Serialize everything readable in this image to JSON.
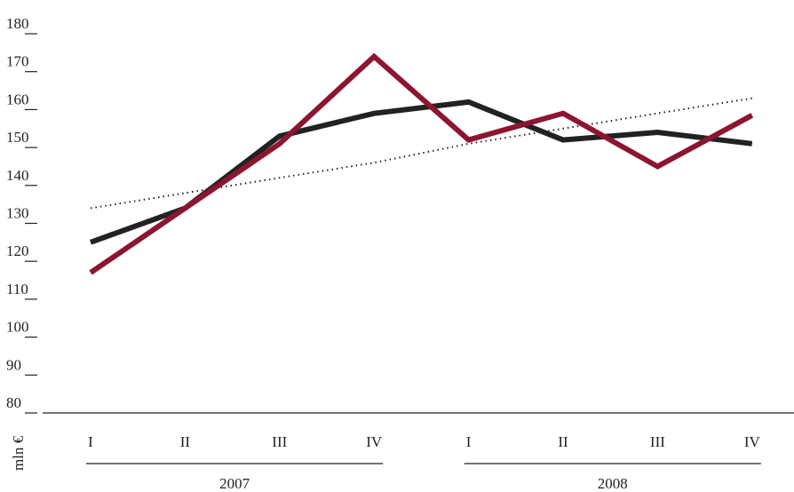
{
  "chart_data": {
    "type": "line",
    "categories": [
      "I",
      "II",
      "III",
      "IV",
      "I",
      "II",
      "III",
      "IV"
    ],
    "groups": [
      "2007",
      "2008"
    ],
    "ylabel": "mln €",
    "ylim": [
      80,
      180
    ],
    "yticks": [
      80,
      90,
      100,
      110,
      120,
      130,
      140,
      150,
      160,
      170,
      180
    ],
    "series": [
      {
        "color": "#8c1530",
        "style": "solid",
        "values": [
          117,
          134,
          151,
          174,
          152,
          159,
          145,
          158.5
        ]
      },
      {
        "color": "#222222",
        "style": "solid",
        "values": [
          125,
          134,
          153,
          159,
          162,
          152,
          154,
          151
        ]
      },
      {
        "color": "#222222",
        "style": "dotted",
        "values": [
          134,
          138,
          142,
          146,
          151,
          155,
          159,
          163
        ]
      }
    ]
  }
}
